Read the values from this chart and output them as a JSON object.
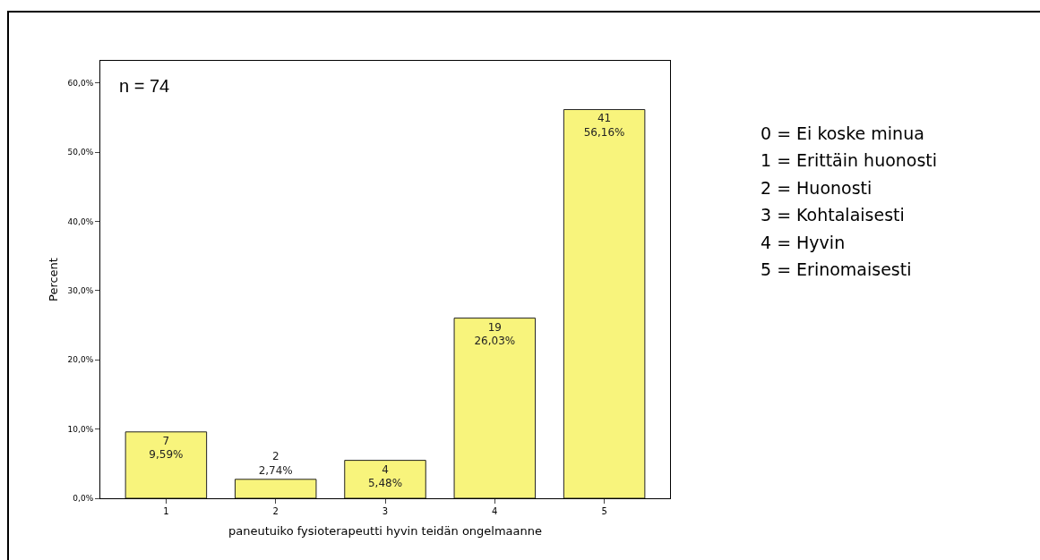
{
  "chart_data": {
    "type": "bar",
    "categories": [
      "1",
      "2",
      "3",
      "4",
      "5"
    ],
    "values": [
      9.59,
      2.74,
      5.48,
      26.03,
      56.16
    ],
    "value_labels": [
      "7\n9,59%",
      "2\n2,74%",
      "4\n5,48%",
      "19\n26,03%",
      "41\n56,16%"
    ],
    "color": "#f8f47c",
    "xlabel": "paneutuiko fysioterapeutti hyvin teidän ongelmaanne",
    "ylabel": "Percent",
    "ylim": [
      0,
      63.2
    ],
    "yticks": [
      {
        "value": 0,
        "label": "0,0%"
      },
      {
        "value": 10,
        "label": "10,0%"
      },
      {
        "value": 20,
        "label": "20,0%"
      },
      {
        "value": 30,
        "label": "30,0%"
      },
      {
        "value": 40,
        "label": "40,0%"
      },
      {
        "value": 50,
        "label": "50,0%"
      },
      {
        "value": 60,
        "label": "60,0%"
      }
    ],
    "grid": false,
    "annotations": [
      "n = 74",
      "0 = Ei koske minua",
      "1 = Erittäin huonosti",
      "2 = Huonosti",
      "3 = Kohtalaisesti",
      "4 = Hyvin",
      "5 = Erinomaisesti"
    ]
  }
}
